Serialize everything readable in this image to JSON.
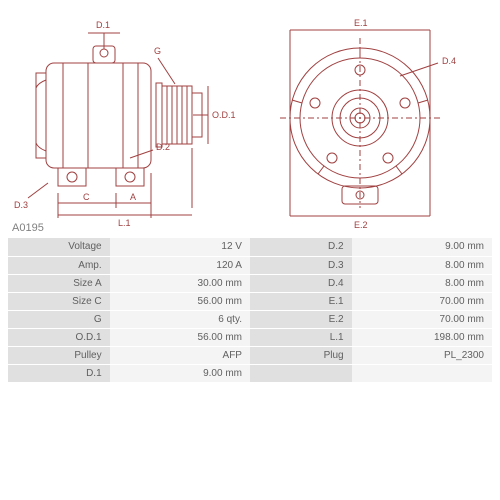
{
  "part_number": "A0195",
  "colors": {
    "line": "#a04040",
    "bg": "#ffffff",
    "table_label_bg": "#e0e0e0",
    "table_value_bg": "#f4f4f4",
    "text": "#606060"
  },
  "diagram_labels": {
    "d1_top": "D.1",
    "g": "G",
    "od1": "O.D.1",
    "d2": "D.2",
    "d3": "D.3",
    "c": "C",
    "a": "A",
    "l1": "L.1",
    "e1": "E.1",
    "d4": "D.4",
    "e2": "E.2"
  },
  "specs_left": [
    {
      "label": "Voltage",
      "value": "12 V"
    },
    {
      "label": "Amp.",
      "value": "120 A"
    },
    {
      "label": "Size A",
      "value": "30.00 mm"
    },
    {
      "label": "Size C",
      "value": "56.00 mm"
    },
    {
      "label": "G",
      "value": "6 qty."
    },
    {
      "label": "O.D.1",
      "value": "56.00 mm"
    },
    {
      "label": "Pulley",
      "value": "AFP"
    },
    {
      "label": "D.1",
      "value": "9.00 mm"
    }
  ],
  "specs_right": [
    {
      "label": "D.2",
      "value": "9.00 mm"
    },
    {
      "label": "D.3",
      "value": "8.00 mm"
    },
    {
      "label": "D.4",
      "value": "8.00 mm"
    },
    {
      "label": "E.1",
      "value": "70.00 mm"
    },
    {
      "label": "E.2",
      "value": "70.00 mm"
    },
    {
      "label": "L.1",
      "value": "198.00 mm"
    },
    {
      "label": "Plug",
      "value": "PL_2300"
    },
    {
      "label": "",
      "value": ""
    }
  ]
}
